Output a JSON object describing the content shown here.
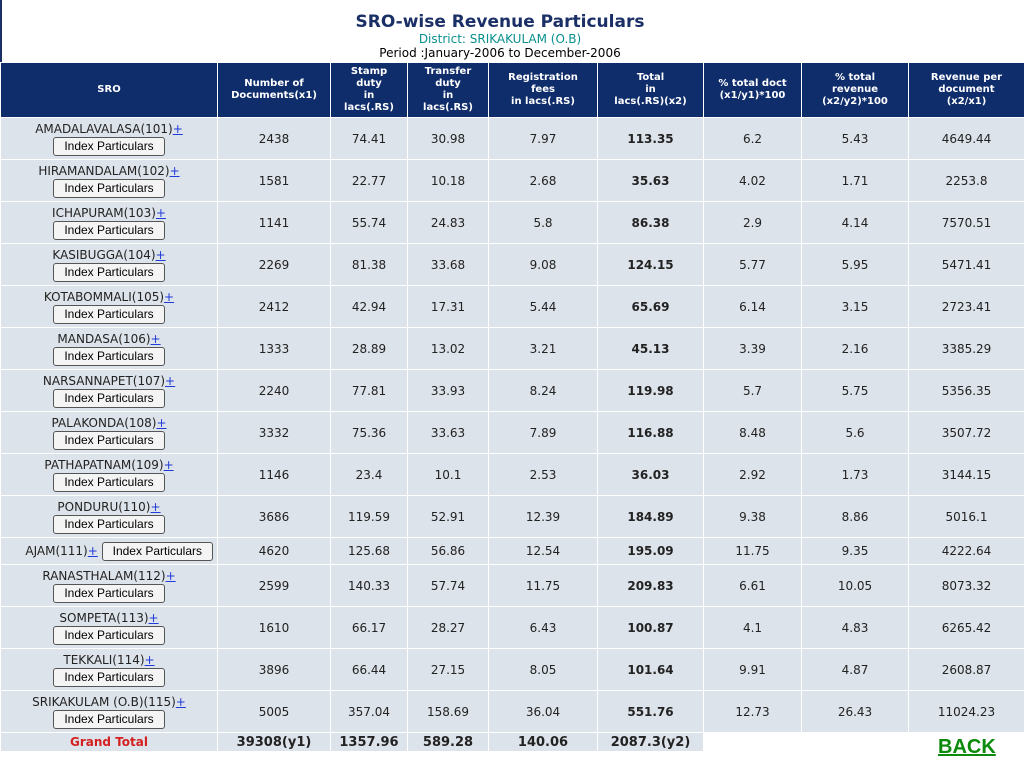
{
  "header": {
    "title": "SRO-wise Revenue Particulars",
    "district": "District: SRIKAKULAM (O.B)",
    "period": "Period :January-2006 to December-2006"
  },
  "columns": [
    [
      "SRO"
    ],
    [
      "Number of",
      "Documents(x1)"
    ],
    [
      "Stamp",
      "duty",
      "in",
      "lacs(.RS)"
    ],
    [
      "Transfer",
      "duty",
      "in",
      "lacs(.RS)"
    ],
    [
      "Registration",
      "fees",
      "in lacs(.RS)"
    ],
    [
      "Total",
      "in",
      "lacs(.RS)(x2)"
    ],
    [
      "% total doct",
      "(x1/y1)*100"
    ],
    [
      "% total",
      "revenue",
      "(x2/y2)*100"
    ],
    [
      "Revenue per",
      "document",
      "(x2/x1)"
    ]
  ],
  "button_label": "Index Particulars",
  "plus": "+",
  "rows": [
    {
      "sro": "AMADALAVALASA(101)",
      "docs": "2438",
      "stamp": "74.41",
      "transfer": "30.98",
      "reg": "7.97",
      "total": "113.35",
      "pdoc": "6.2",
      "prev": "5.43",
      "rpd": "4649.44"
    },
    {
      "sro": "HIRAMANDALAM(102)",
      "docs": "1581",
      "stamp": "22.77",
      "transfer": "10.18",
      "reg": "2.68",
      "total": "35.63",
      "pdoc": "4.02",
      "prev": "1.71",
      "rpd": "2253.8"
    },
    {
      "sro": "ICHAPURAM(103)",
      "docs": "1141",
      "stamp": "55.74",
      "transfer": "24.83",
      "reg": "5.8",
      "total": "86.38",
      "pdoc": "2.9",
      "prev": "4.14",
      "rpd": "7570.51"
    },
    {
      "sro": "KASIBUGGA(104)",
      "docs": "2269",
      "stamp": "81.38",
      "transfer": "33.68",
      "reg": "9.08",
      "total": "124.15",
      "pdoc": "5.77",
      "prev": "5.95",
      "rpd": "5471.41"
    },
    {
      "sro": "KOTABOMMALI(105)",
      "docs": "2412",
      "stamp": "42.94",
      "transfer": "17.31",
      "reg": "5.44",
      "total": "65.69",
      "pdoc": "6.14",
      "prev": "3.15",
      "rpd": "2723.41"
    },
    {
      "sro": "MANDASA(106)",
      "docs": "1333",
      "stamp": "28.89",
      "transfer": "13.02",
      "reg": "3.21",
      "total": "45.13",
      "pdoc": "3.39",
      "prev": "2.16",
      "rpd": "3385.29"
    },
    {
      "sro": "NARSANNAPET(107)",
      "docs": "2240",
      "stamp": "77.81",
      "transfer": "33.93",
      "reg": "8.24",
      "total": "119.98",
      "pdoc": "5.7",
      "prev": "5.75",
      "rpd": "5356.35"
    },
    {
      "sro": "PALAKONDA(108)",
      "docs": "3332",
      "stamp": "75.36",
      "transfer": "33.63",
      "reg": "7.89",
      "total": "116.88",
      "pdoc": "8.48",
      "prev": "5.6",
      "rpd": "3507.72"
    },
    {
      "sro": "PATHAPATNAM(109)",
      "docs": "1146",
      "stamp": "23.4",
      "transfer": "10.1",
      "reg": "2.53",
      "total": "36.03",
      "pdoc": "2.92",
      "prev": "1.73",
      "rpd": "3144.15"
    },
    {
      "sro": "PONDURU(110)",
      "docs": "3686",
      "stamp": "119.59",
      "transfer": "52.91",
      "reg": "12.39",
      "total": "184.89",
      "pdoc": "9.38",
      "prev": "8.86",
      "rpd": "5016.1"
    },
    {
      "sro": "AJAM(111)",
      "docs": "4620",
      "stamp": "125.68",
      "transfer": "56.86",
      "reg": "12.54",
      "total": "195.09",
      "pdoc": "11.75",
      "prev": "9.35",
      "rpd": "4222.64",
      "inline": true
    },
    {
      "sro": "RANASTHALAM(112)",
      "docs": "2599",
      "stamp": "140.33",
      "transfer": "57.74",
      "reg": "11.75",
      "total": "209.83",
      "pdoc": "6.61",
      "prev": "10.05",
      "rpd": "8073.32"
    },
    {
      "sro": "SOMPETA(113)",
      "docs": "1610",
      "stamp": "66.17",
      "transfer": "28.27",
      "reg": "6.43",
      "total": "100.87",
      "pdoc": "4.1",
      "prev": "4.83",
      "rpd": "6265.42"
    },
    {
      "sro": "TEKKALI(114)",
      "docs": "3896",
      "stamp": "66.44",
      "transfer": "27.15",
      "reg": "8.05",
      "total": "101.64",
      "pdoc": "9.91",
      "prev": "4.87",
      "rpd": "2608.87"
    },
    {
      "sro": "SRIKAKULAM (O.B)(115)",
      "docs": "5005",
      "stamp": "357.04",
      "transfer": "158.69",
      "reg": "36.04",
      "total": "551.76",
      "pdoc": "12.73",
      "prev": "26.43",
      "rpd": "11024.23"
    }
  ],
  "grand_total": {
    "label": "Grand Total",
    "docs": "39308(y1)",
    "stamp": "1357.96",
    "transfer": "589.28",
    "reg": "140.06",
    "total": "2087.3(y2)"
  },
  "back_label": "BACK",
  "colors": {
    "header_bg": "#0f2d6b",
    "cell_bg": "#dde3ea",
    "title": "#1a2f66",
    "district": "#0a8f8f",
    "grand_total": "#d42020",
    "back": "#0b8a0b",
    "plus": "#1f3ad8"
  }
}
